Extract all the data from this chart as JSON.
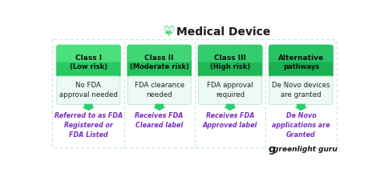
{
  "title": "Medical Device",
  "background_color": "#ffffff",
  "outer_border_color": "#b8e8cc",
  "purple_text_color": "#7b2fbe",
  "logo_color": "#1a1a1a",
  "logo_green": "#2ecc71",
  "columns": [
    {
      "header_line1": "Class I",
      "header_line2": "(Low risk)",
      "green_top": "#5ceb8a",
      "green_bottom": "#26c962",
      "middle": "No FDA\napproval needed",
      "bottom": "Referred to as FDA\nRegistered or\nFDA Listed"
    },
    {
      "header_line1": "Class II",
      "header_line2": "(Moderate risk)",
      "green_top": "#4de080",
      "green_bottom": "#22c05c",
      "middle": "FDA clearance\nneeded",
      "bottom": "Receives FDA\nCleared label"
    },
    {
      "header_line1": "Class III",
      "header_line2": "(High risk)",
      "green_top": "#3ed678",
      "green_bottom": "#1eb856",
      "middle": "FDA approval\nrequired",
      "bottom": "Receives FDA\nApproved label"
    },
    {
      "header_line1": "Alternative",
      "header_line2": "pathways",
      "green_top": "#2ecc6e",
      "green_bottom": "#18b050",
      "middle": "De Novo devices\nare granted",
      "bottom": "De Novo\napplications are\nGranted"
    }
  ]
}
